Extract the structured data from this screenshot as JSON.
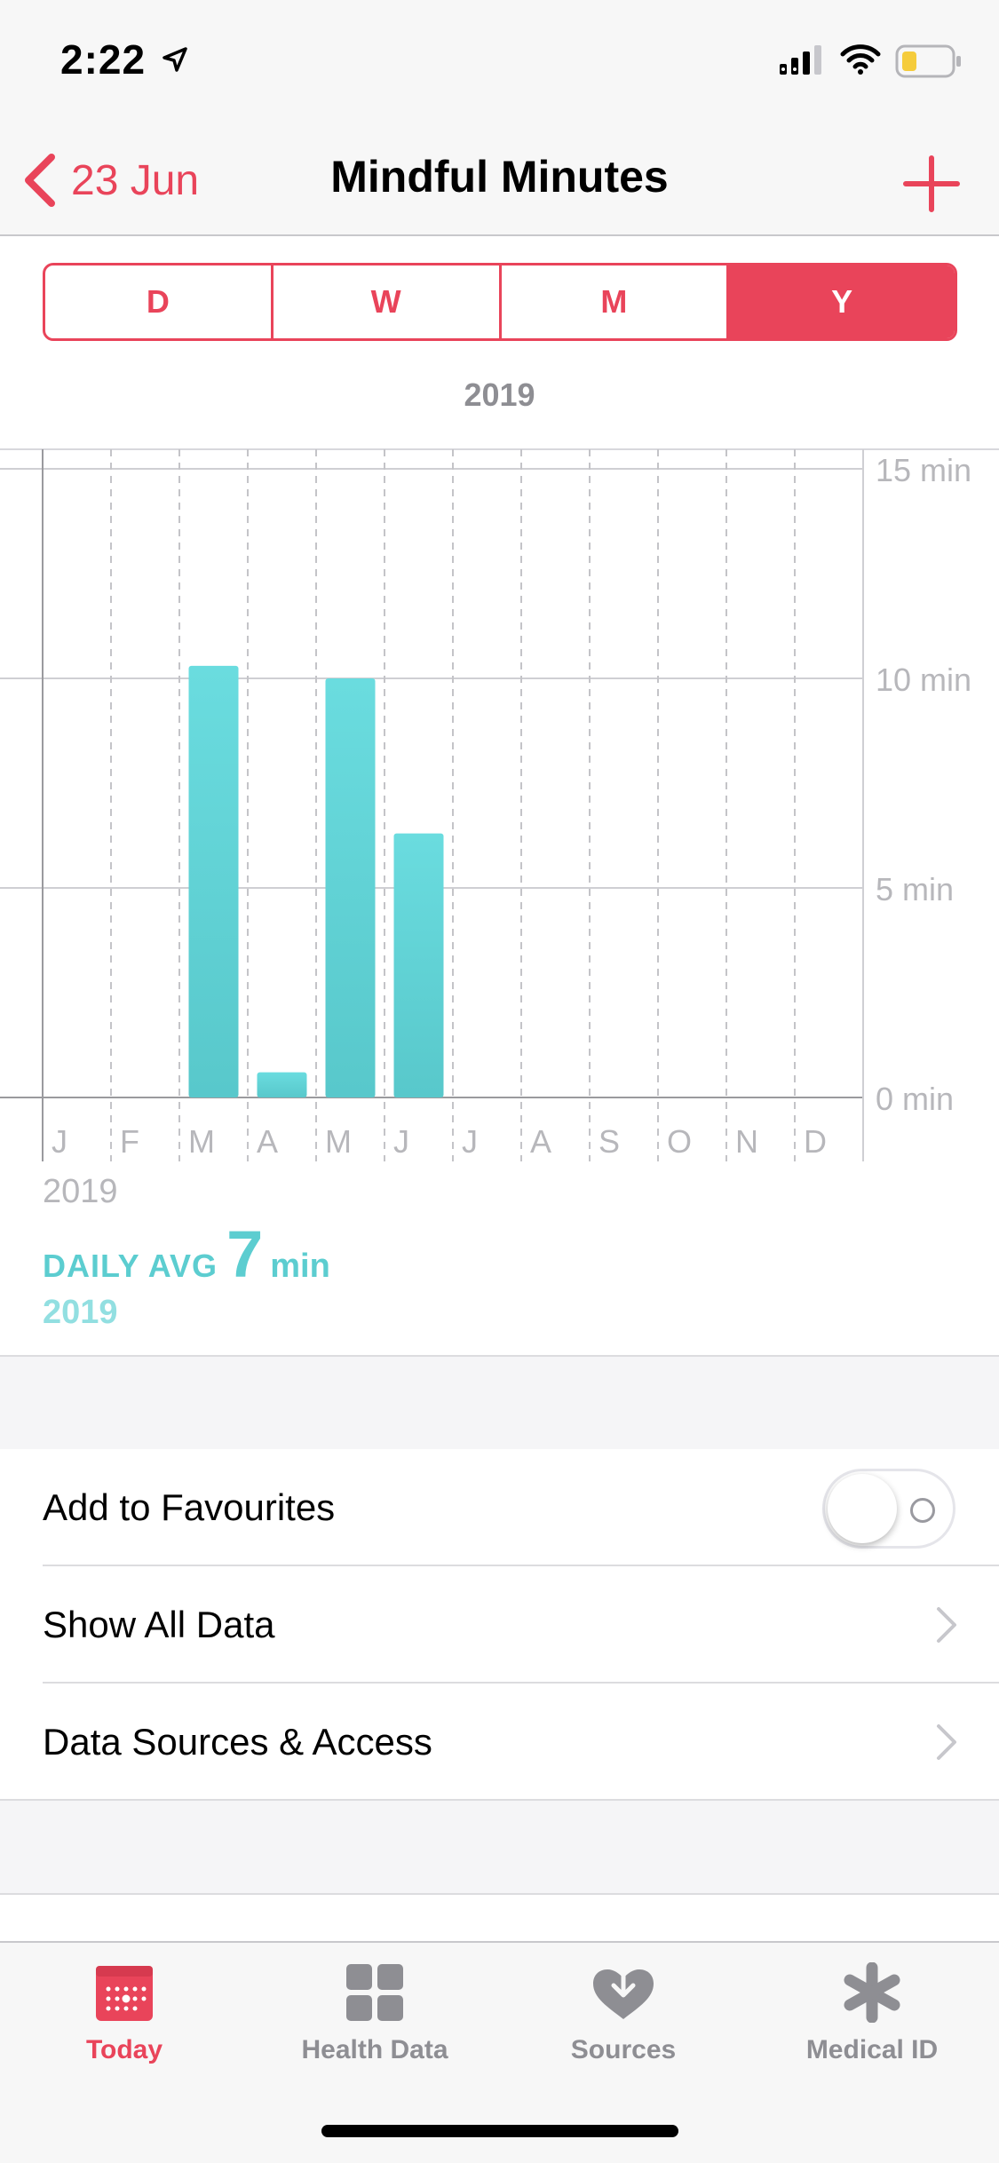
{
  "status_bar": {
    "time": "2:22"
  },
  "nav": {
    "back_label": "23 Jun",
    "title": "Mindful Minutes"
  },
  "segments": [
    {
      "label": "D",
      "active": false
    },
    {
      "label": "W",
      "active": false
    },
    {
      "label": "M",
      "active": false
    },
    {
      "label": "Y",
      "active": true
    }
  ],
  "range_label": "2019",
  "chart_data": {
    "type": "bar",
    "categories": [
      "J",
      "F",
      "M",
      "A",
      "M",
      "J",
      "J",
      "A",
      "S",
      "O",
      "N",
      "D"
    ],
    "values": [
      0,
      0,
      10.3,
      0.6,
      10.0,
      6.3,
      0,
      0,
      0,
      0,
      0,
      0
    ],
    "x_year_label": "2019",
    "y_tick_labels": [
      "15 min",
      "10 min",
      "5 min",
      "0 min"
    ],
    "y_ticks": [
      15,
      10,
      5,
      0
    ],
    "ylim": [
      0,
      15
    ],
    "bar_color": "#62d5d8",
    "grid": true
  },
  "summary": {
    "avg_label": "DAILY AVG",
    "avg_value": "7",
    "avg_unit": "min",
    "avg_year": "2019"
  },
  "list": {
    "favourites_label": "Add to Favourites",
    "favourites_on": false,
    "show_all_label": "Show All Data",
    "sources_label": "Data Sources & Access"
  },
  "tabs": [
    {
      "label": "Today",
      "icon": "calendar-icon",
      "active": true
    },
    {
      "label": "Health Data",
      "icon": "grid-icon",
      "active": false
    },
    {
      "label": "Sources",
      "icon": "heart-download-icon",
      "active": false
    },
    {
      "label": "Medical ID",
      "icon": "asterisk-icon",
      "active": false
    }
  ],
  "colors": {
    "accent": "#e9445a",
    "teal": "#5ccdd0",
    "teal_light": "#92dfe1"
  }
}
